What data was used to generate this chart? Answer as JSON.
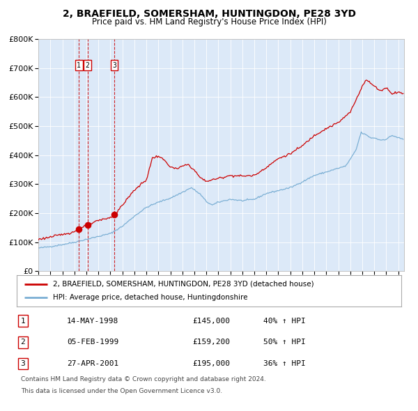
{
  "title1": "2, BRAEFIELD, SOMERSHAM, HUNTINGDON, PE28 3YD",
  "title2": "Price paid vs. HM Land Registry's House Price Index (HPI)",
  "legend_red": "2, BRAEFIELD, SOMERSHAM, HUNTINGDON, PE28 3YD (detached house)",
  "legend_blue": "HPI: Average price, detached house, Huntingdonshire",
  "table": [
    {
      "num": "1",
      "date": "14-MAY-1998",
      "price": "£145,000",
      "hpi": "40% ↑ HPI"
    },
    {
      "num": "2",
      "date": "05-FEB-1999",
      "price": "£159,200",
      "hpi": "50% ↑ HPI"
    },
    {
      "num": "3",
      "date": "27-APR-2001",
      "price": "£195,000",
      "hpi": "36% ↑ HPI"
    }
  ],
  "footnote1": "Contains HM Land Registry data © Crown copyright and database right 2024.",
  "footnote2": "This data is licensed under the Open Government Licence v3.0.",
  "sale_dates": [
    1998.37,
    1999.09,
    2001.32
  ],
  "sale_prices": [
    145000,
    159200,
    195000
  ],
  "sale_labels": [
    "1",
    "2",
    "3"
  ],
  "ylim": [
    0,
    800000
  ],
  "xlim_start": 1995.0,
  "xlim_end": 2025.5,
  "background_color": "#dce9f8",
  "red_color": "#cc0000",
  "blue_color": "#7bafd4"
}
